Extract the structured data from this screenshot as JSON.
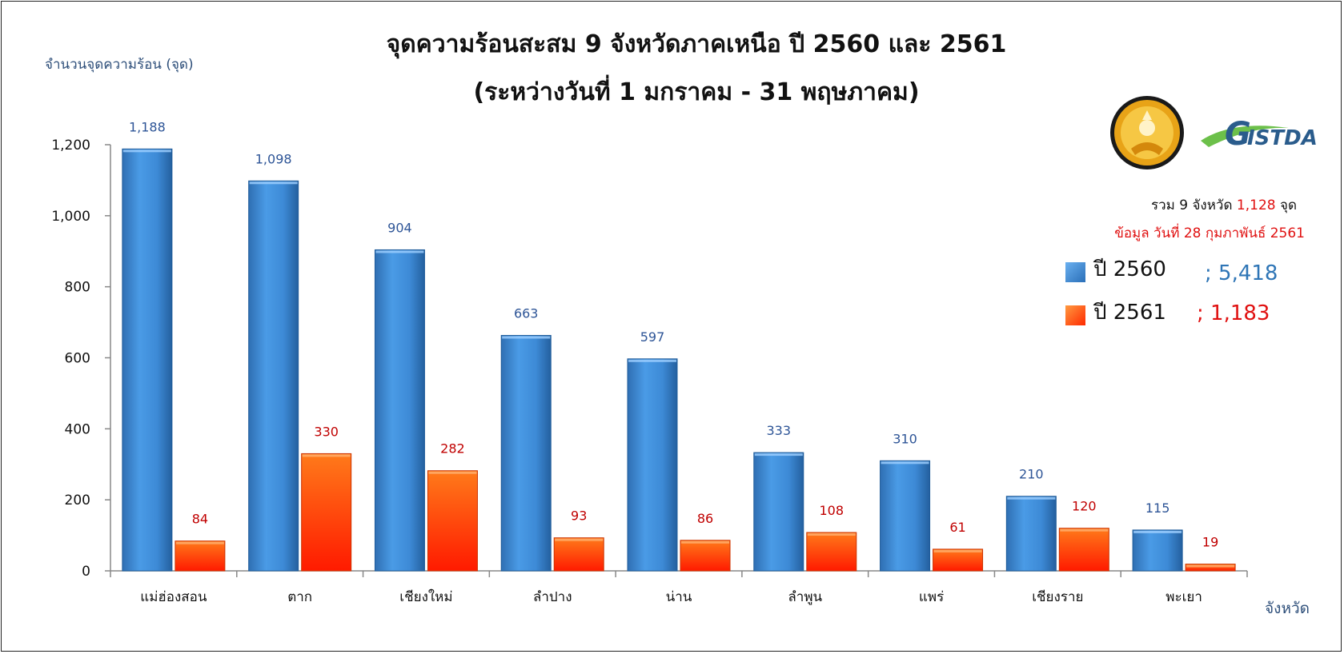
{
  "chart_data": {
    "type": "bar",
    "title": "จุดความร้อนสะสม 9 จังหวัดภาคเหนือ ปี 2560 และ 2561",
    "subtitle": "(ระหว่างวันที่ 1 มกราคม - 31 พฤษภาคม)",
    "ylabel": "จำนวนจุดความร้อน (จุด)",
    "xlabel": "จังหวัด",
    "ylim": [
      0,
      1200
    ],
    "yticks": [
      "0",
      "200",
      "400",
      "600",
      "800",
      "1,000",
      "1,200"
    ],
    "categories": [
      "แม่ฮ่องสอน",
      "ตาก",
      "เชียงใหม่",
      "ลำปาง",
      "น่าน",
      "ลำพูน",
      "แพร่",
      "เชียงราย",
      "พะเยา"
    ],
    "series": [
      {
        "name": "ปี 2560",
        "values": [
          1188,
          1098,
          904,
          663,
          597,
          333,
          310,
          210,
          115
        ],
        "labels": [
          "1,188",
          "1,098",
          "904",
          "663",
          "597",
          "333",
          "310",
          "210",
          "115"
        ],
        "color": "#3f8fd8"
      },
      {
        "name": "ปี 2561",
        "values": [
          84,
          330,
          282,
          93,
          86,
          108,
          61,
          120,
          19
        ],
        "labels": [
          "84",
          "330",
          "282",
          "93",
          "86",
          "108",
          "61",
          "120",
          "19"
        ],
        "color": "#ff5a10"
      }
    ],
    "legend": {
      "placement": "right",
      "totals": [
        "; 5,418",
        "; 1,183"
      ]
    },
    "summary": {
      "prefix": "รวม 9 จังหวัด",
      "value": "1,128",
      "suffix": "จุด",
      "note": "ข้อมูล วันที่ 28 กุมภาพันธ์ 2561"
    },
    "logos": [
      "ministry-of-science-and-technology-seal",
      "GISTDA"
    ],
    "grid": false
  }
}
